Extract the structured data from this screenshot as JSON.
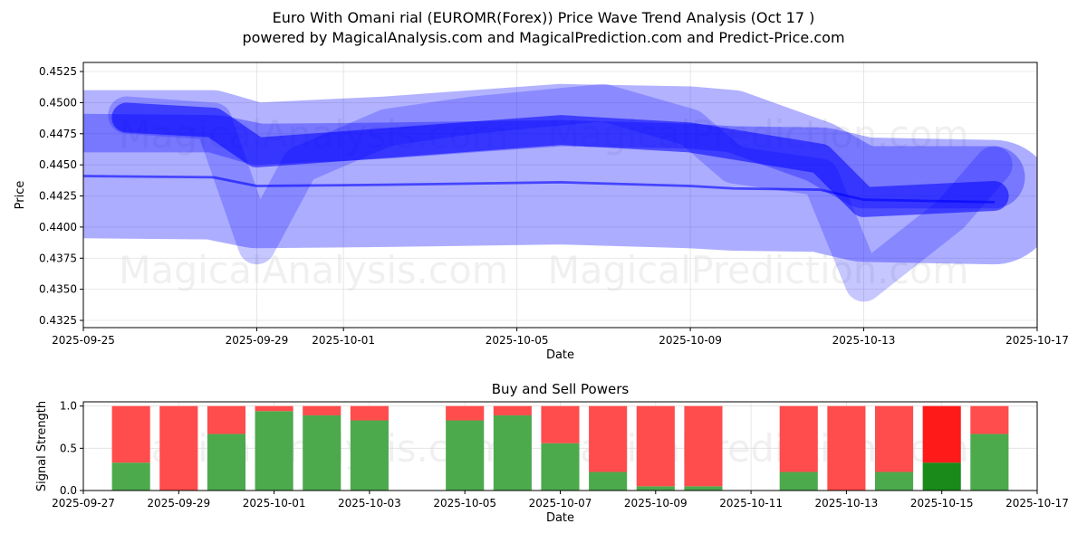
{
  "chart_data": [
    {
      "type": "line",
      "title": "Euro With Omani rial (EUROMR(Forex)) Price Wave Trend Analysis (Oct 17 )",
      "subtitle": "powered by MagicalAnalysis.com and MagicalPrediction.com and Predict-Price.com",
      "xlabel": "Date",
      "ylabel": "Price",
      "xlim": [
        "2025-09-25",
        "2025-10-17"
      ],
      "ylim": [
        0.43192,
        0.45323
      ],
      "x_ticks": [
        "2025-09-25",
        "2025-09-29",
        "2025-10-01",
        "2025-10-05",
        "2025-10-09",
        "2025-10-13",
        "2025-10-17"
      ],
      "y_ticks": [
        "0.4325",
        "0.4350",
        "0.4375",
        "0.4400",
        "0.4425",
        "0.4450",
        "0.4475",
        "0.4500",
        "0.4525"
      ],
      "grid": true,
      "watermarks": [
        "MagicalAnalysis.com",
        "MagicalPrediction.com"
      ],
      "series": [
        {
          "name": "wave-wide-low",
          "band": 0.005,
          "opacity": 0.32,
          "x": [
            "2025-09-25",
            "2025-09-28",
            "2025-09-29",
            "2025-10-02",
            "2025-10-06",
            "2025-10-09",
            "2025-10-10",
            "2025-10-12",
            "2025-10-13",
            "2025-10-16"
          ],
          "y": [
            0.4441,
            0.444,
            0.4433,
            0.4434,
            0.4436,
            0.4433,
            0.4431,
            0.443,
            0.4422,
            0.442
          ]
        },
        {
          "name": "wave-wide-high",
          "band": 0.0025,
          "opacity": 0.3,
          "x": [
            "2025-09-25",
            "2025-09-28",
            "2025-09-29",
            "2025-10-02",
            "2025-10-06",
            "2025-10-09",
            "2025-10-10",
            "2025-10-12",
            "2025-10-13",
            "2025-10-16"
          ],
          "y": [
            0.4485,
            0.4485,
            0.4475,
            0.448,
            0.449,
            0.4488,
            0.4485,
            0.446,
            0.444,
            0.444
          ]
        },
        {
          "name": "wave-dip",
          "band": 0.0015,
          "opacity": 0.22,
          "x": [
            "2025-09-26",
            "2025-09-28",
            "2025-09-29",
            "2025-09-30",
            "2025-10-02",
            "2025-10-04",
            "2025-10-07",
            "2025-10-09",
            "2025-10-10",
            "2025-10-12",
            "2025-10-13",
            "2025-10-15",
            "2025-10-16"
          ],
          "y": [
            0.449,
            0.4485,
            0.4385,
            0.445,
            0.448,
            0.449,
            0.45,
            0.448,
            0.445,
            0.444,
            0.4355,
            0.441,
            0.445
          ]
        },
        {
          "name": "wave-core",
          "band": 0.0012,
          "opacity": 0.55,
          "x": [
            "2025-09-26",
            "2025-09-28",
            "2025-09-29",
            "2025-10-01",
            "2025-10-06",
            "2025-10-09",
            "2025-10-12",
            "2025-10-13",
            "2025-10-16"
          ],
          "y": [
            0.4488,
            0.4484,
            0.446,
            0.4465,
            0.4478,
            0.4472,
            0.4455,
            0.442,
            0.4425
          ]
        },
        {
          "name": "wave-center-line",
          "band": 0.0001,
          "opacity": 0.6,
          "x": [
            "2025-09-25",
            "2025-09-28",
            "2025-09-29",
            "2025-10-02",
            "2025-10-06",
            "2025-10-09",
            "2025-10-10",
            "2025-10-12",
            "2025-10-13",
            "2025-10-16"
          ],
          "y": [
            0.4441,
            0.444,
            0.4433,
            0.4434,
            0.4436,
            0.4433,
            0.4431,
            0.443,
            0.4422,
            0.442
          ]
        }
      ],
      "color": "#0000ff"
    },
    {
      "type": "bar",
      "title": "Buy and Sell Powers",
      "xlabel": "Date",
      "ylabel": "Signal Strength",
      "xlim": [
        "2025-09-27",
        "2025-10-17"
      ],
      "ylim": [
        0,
        1.05
      ],
      "x_ticks": [
        "2025-09-27",
        "2025-09-29",
        "2025-10-01",
        "2025-10-03",
        "2025-10-05",
        "2025-10-07",
        "2025-10-09",
        "2025-10-11",
        "2025-10-13",
        "2025-10-15",
        "2025-10-17"
      ],
      "y_ticks": [
        "0.0",
        "0.5",
        "1.0"
      ],
      "grid": true,
      "categories": [
        "2025-09-28",
        "2025-09-29",
        "2025-09-30",
        "2025-10-01",
        "2025-10-02",
        "2025-10-03",
        "2025-10-05",
        "2025-10-06",
        "2025-10-07",
        "2025-10-08",
        "2025-10-09",
        "2025-10-10",
        "2025-10-12",
        "2025-10-13",
        "2025-10-14",
        "2025-10-15",
        "2025-10-16"
      ],
      "series": [
        {
          "name": "Buy",
          "color": "#4caa4c",
          "values": [
            0.33,
            0,
            0.67,
            0.94,
            0.89,
            0.83,
            0.83,
            0.89,
            0.56,
            0.22,
            0.05,
            0.05,
            0.22,
            0,
            0.22,
            0.33,
            0.67
          ]
        },
        {
          "name": "Sell",
          "color": "#ff4c4c",
          "values": [
            0.67,
            1,
            0.33,
            0.06,
            0.11,
            0.17,
            0.17,
            0.11,
            0.44,
            0.78,
            0.95,
            0.95,
            0.78,
            1,
            0.78,
            0.67,
            0.33
          ]
        }
      ],
      "highlight": {
        "category": "2025-10-15",
        "buy_color": "#1a8a1a",
        "sell_color": "#ff1a1a"
      },
      "watermarks": [
        "MagicalAnalysis.com",
        "MagicalPrediction.com"
      ]
    }
  ]
}
